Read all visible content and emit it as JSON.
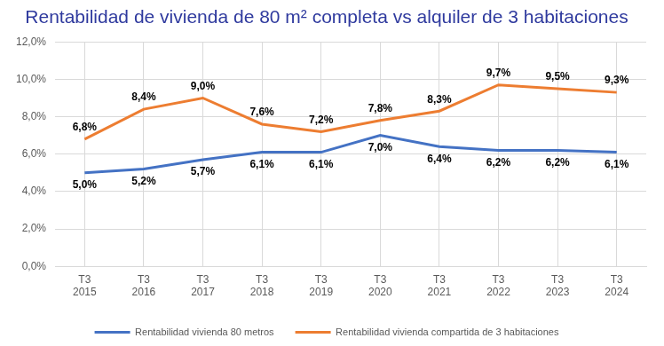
{
  "chart_data": {
    "type": "line",
    "title": "Rentabilidad de vivienda de 80 m² completa vs alquiler de 3 habitaciones",
    "categories": [
      "T3 2015",
      "T3 2016",
      "T3 2017",
      "T3 2018",
      "T3 2019",
      "T3 2020",
      "T3 2021",
      "T3 2022",
      "T3 2023",
      "T3 2024"
    ],
    "series": [
      {
        "name": "Rentabilidad vivienda 80 metros",
        "color": "#4472c4",
        "marker": "none",
        "line_style": "solid",
        "values": [
          5.0,
          5.2,
          5.7,
          6.1,
          6.1,
          7.0,
          6.4,
          6.2,
          6.2,
          6.1
        ],
        "value_labels": [
          "5,0%",
          "5,2%",
          "5,7%",
          "6,1%",
          "6,1%",
          "7,0%",
          "6,4%",
          "6,2%",
          "6,2%",
          "6,1%"
        ]
      },
      {
        "name": "Rentabilidad vivienda compartida de 3 habitaciones",
        "color": "#ed7d31",
        "marker": "none",
        "line_style": "solid",
        "values": [
          6.8,
          8.4,
          9.0,
          7.6,
          7.2,
          7.8,
          8.3,
          9.7,
          9.5,
          9.3
        ],
        "value_labels": [
          "6,8%",
          "8,4%",
          "9,0%",
          "7,6%",
          "7,2%",
          "7,8%",
          "8,3%",
          "9,7%",
          "9,5%",
          "9,3%"
        ]
      }
    ],
    "ylim": [
      0,
      12
    ],
    "yticks": [
      {
        "value": 0,
        "label": "0,0%"
      },
      {
        "value": 2,
        "label": "2,0%"
      },
      {
        "value": 4,
        "label": "4,0%"
      },
      {
        "value": 6,
        "label": "6,0%"
      },
      {
        "value": 8,
        "label": "8,0%"
      },
      {
        "value": 10,
        "label": "10,0%"
      },
      {
        "value": 12,
        "label": "12,0%"
      }
    ],
    "grid": true,
    "legend": "bottom",
    "data_labels": true
  }
}
